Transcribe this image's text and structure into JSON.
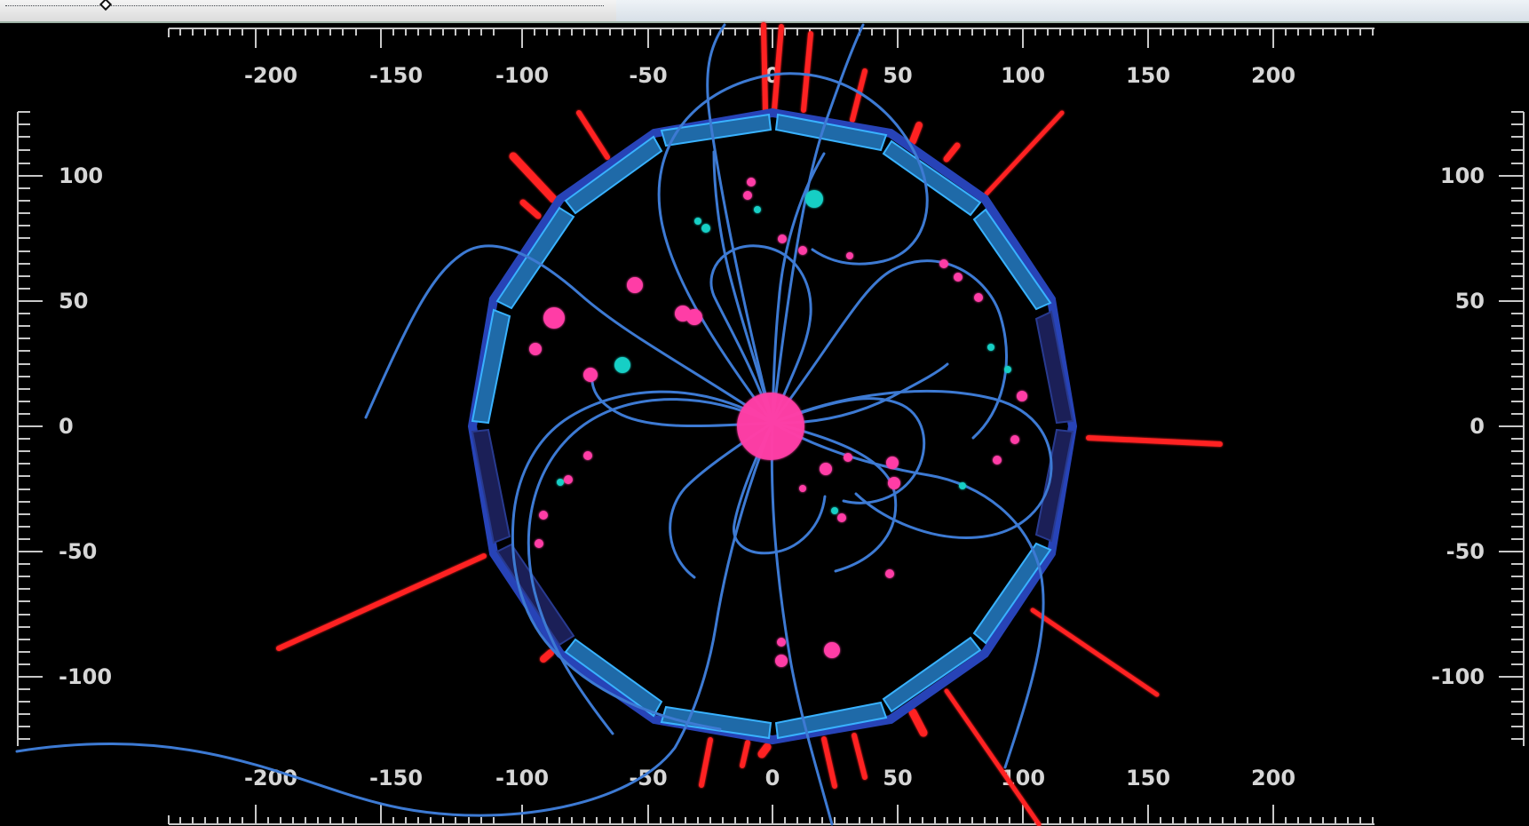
{
  "event_display": {
    "x_axis": {
      "top_labels": [
        "-200",
        "-150",
        "-100",
        "-50",
        "0",
        "50",
        "100",
        "150",
        "200"
      ],
      "bottom_labels": [
        "-200",
        "-150",
        "-100",
        "-50",
        "0",
        "50",
        "100",
        "150",
        "200"
      ]
    },
    "y_axis": {
      "left_labels": [
        "100",
        "50",
        "0",
        "-50",
        "-100"
      ],
      "right_labels": [
        "100",
        "50",
        "0",
        "-50",
        "-100"
      ]
    },
    "colors": {
      "background": "#000000",
      "detector_segment": "#1e6fae",
      "detector_outline": "#2f8fe0",
      "detector_dark": "#1a1f5a",
      "track": "#3d7ad3",
      "hit_pink": "#ff3ea6",
      "hit_cyan": "#16cfc5",
      "jet_red": "#ff2020"
    }
  }
}
